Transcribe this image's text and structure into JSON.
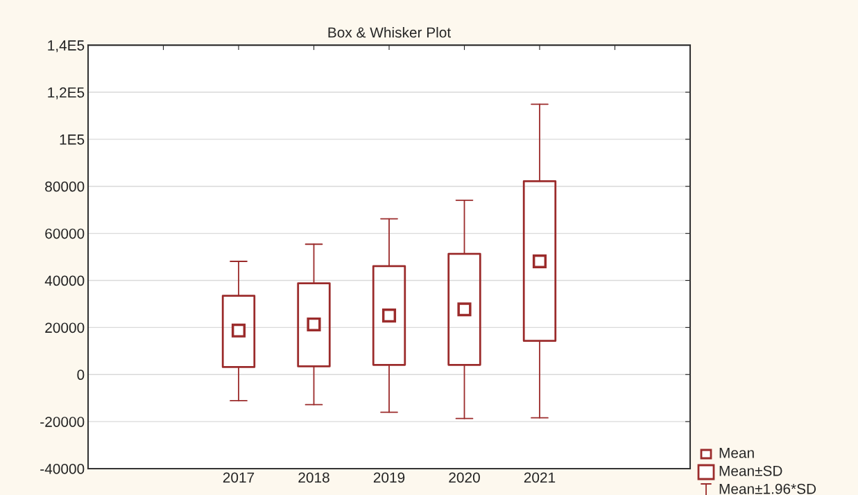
{
  "chart_data": {
    "type": "box",
    "title": "Box & Whisker Plot",
    "categories": [
      null,
      "2017",
      "2018",
      "2019",
      "2020",
      "2021",
      null
    ],
    "boxes": [
      null,
      {
        "low": -11100,
        "q1": 3200,
        "median": 18700,
        "q3": 33500,
        "high": 48100
      },
      {
        "low": -12800,
        "q1": 3500,
        "median": 21300,
        "q3": 38800,
        "high": 55400
      },
      {
        "low": -16000,
        "q1": 4100,
        "median": 25100,
        "q3": 46100,
        "high": 66200
      },
      {
        "low": -18700,
        "q1": 4100,
        "median": 27700,
        "q3": 51300,
        "high": 74100
      },
      {
        "low": -18400,
        "q1": 14300,
        "median": 48100,
        "q3": 82200,
        "high": 114900
      },
      null
    ],
    "color": "#9b2b2b",
    "ylim": [
      -40000,
      140000
    ],
    "yticks": [
      -40000,
      -20000,
      0,
      20000,
      40000,
      60000,
      80000,
      {
        "value": 100000,
        "label": "1E5"
      },
      {
        "value": 120000,
        "label": "1,2E5"
      },
      {
        "value": 140000,
        "label": "1,4E5"
      }
    ],
    "grid": "y",
    "annotations": [
      "Mean",
      "Mean±SD",
      "Mean±1.96*SD"
    ]
  }
}
